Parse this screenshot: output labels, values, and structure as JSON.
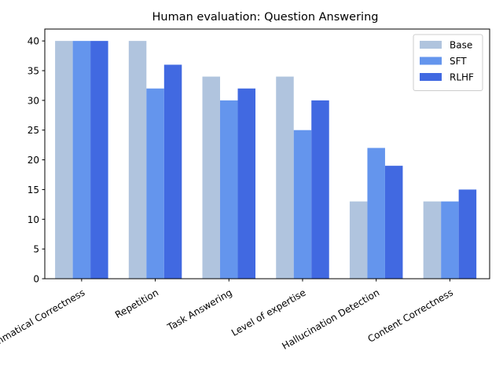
{
  "chart_data": {
    "type": "bar",
    "title": "Human evaluation: Question Answering",
    "xlabel": "",
    "ylabel": "",
    "categories": [
      "Grammatical Correctness",
      "Repetition",
      "Task Answering",
      "Level of expertise",
      "Hallucination Detection",
      "Content Correctness"
    ],
    "series": [
      {
        "name": "Base",
        "color": "#b0c4de",
        "values": [
          40,
          40,
          34,
          34,
          13,
          13
        ]
      },
      {
        "name": "SFT",
        "color": "#6495ed",
        "values": [
          40,
          32,
          30,
          25,
          22,
          13
        ]
      },
      {
        "name": "RLHF",
        "color": "#4169e1",
        "values": [
          40,
          36,
          32,
          30,
          19,
          15
        ]
      }
    ],
    "ylim": [
      0,
      42
    ],
    "yticks": [
      0,
      5,
      10,
      15,
      20,
      25,
      30,
      35,
      40
    ],
    "tick_label_rotation_deg": 30,
    "grid": false,
    "legend_position": "top-right"
  }
}
